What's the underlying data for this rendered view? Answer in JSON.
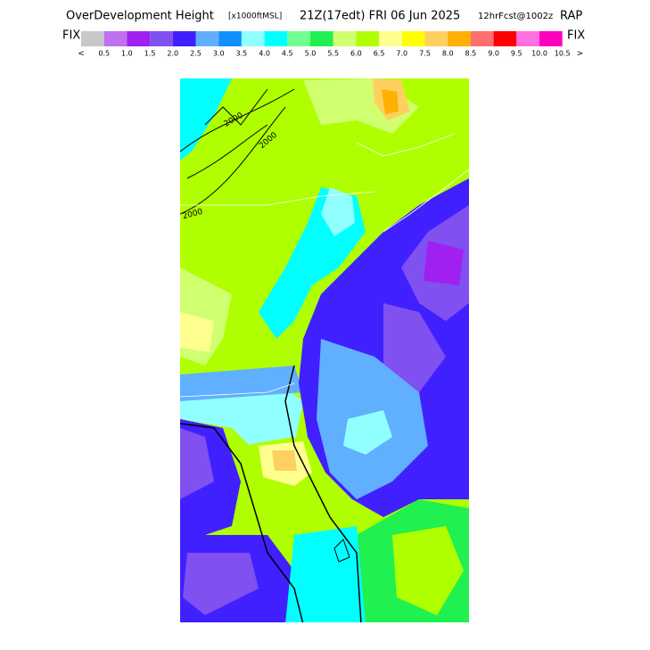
{
  "header": {
    "title_parts": [
      "OverDevelopment Height",
      "[x1000ftMSL]",
      "21Z(17edt) FRI 06 Jun 2025",
      "12hrFcst@1002z",
      "RAP"
    ]
  },
  "legend": {
    "left_label": "FIX",
    "right_label": "FIX",
    "low_label": "<",
    "high_label": ">",
    "colors": [
      "#c8c8c8",
      "#c070f0",
      "#a020f0",
      "#8050f0",
      "#4020ff",
      "#60b0ff",
      "#1090ff",
      "#90ffff",
      "#00ffff",
      "#70ff90",
      "#20f050",
      "#d0ff70",
      "#b0ff00",
      "#ffff90",
      "#ffff00",
      "#ffd060",
      "#ffb000",
      "#ff7070",
      "#ff0000",
      "#ff70e0",
      "#ff00c0"
    ],
    "labels": [
      "0.5",
      "1.0",
      "1.5",
      "2.0",
      "2.5",
      "3.0",
      "3.5",
      "4.0",
      "4.5",
      "5.0",
      "5.5",
      "6.0",
      "6.5",
      "7.0",
      "7.5",
      "8.0",
      "8.5",
      "9.0",
      "9.5",
      "10.0",
      "10.5"
    ]
  },
  "map": {
    "contour_labels": [
      "2000",
      "2000",
      "2000"
    ]
  }
}
